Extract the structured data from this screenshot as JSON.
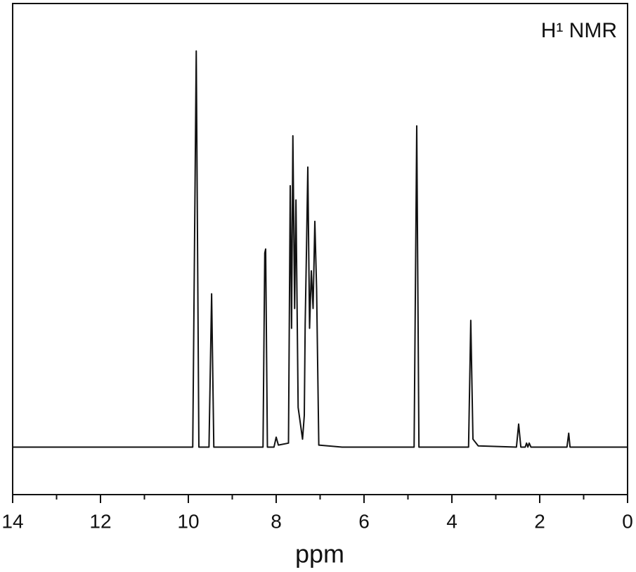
{
  "chart_data": {
    "type": "line",
    "title": "H¹ NMR",
    "x_label": "ppm",
    "x": [
      14,
      9.9,
      9.82,
      9.76,
      9.53,
      9.47,
      9.42,
      8.3,
      8.26,
      8.24,
      8.2,
      8.05,
      8.0,
      7.95,
      7.72,
      7.68,
      7.65,
      7.62,
      7.58,
      7.55,
      7.5,
      7.4,
      7.36,
      7.34,
      7.31,
      7.28,
      7.24,
      7.2,
      7.16,
      7.12,
      7.08,
      7.03,
      6.5,
      4.86,
      4.8,
      4.75,
      3.62,
      3.57,
      3.52,
      3.4,
      2.53,
      2.48,
      2.43,
      2.33,
      2.3,
      2.27,
      2.24,
      2.2,
      1.38,
      1.34,
      1.31,
      0
    ],
    "series": [
      {
        "color": "#111111",
        "values": [
          0,
          0,
          1.0,
          0,
          0,
          0.387,
          0,
          0,
          0.49,
          0.5,
          0,
          0,
          0.025,
          0.005,
          0.01,
          0.66,
          0.3,
          0.786,
          0.35,
          0.624,
          0.1,
          0.02,
          0.08,
          0.31,
          0.5,
          0.707,
          0.3,
          0.445,
          0.35,
          0.57,
          0.4,
          0.005,
          0,
          0,
          0.811,
          0,
          0,
          0.32,
          0.02,
          0.003,
          0,
          0.058,
          0,
          0,
          0.01,
          0,
          0.01,
          0,
          0,
          0.035,
          0,
          0
        ]
      }
    ],
    "xlim": [
      14,
      0
    ],
    "ylim": [
      -0.12,
      1.12
    ],
    "xticks": [
      14,
      12,
      10,
      8,
      6,
      4,
      2,
      0
    ],
    "xminor": [
      13,
      11,
      9,
      7,
      5,
      3,
      1
    ]
  }
}
